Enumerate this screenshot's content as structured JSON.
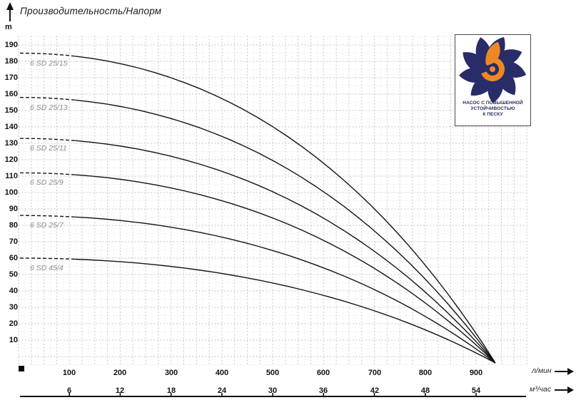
{
  "header": {
    "title": "Производительность/Напорм",
    "y_unit_label": "m"
  },
  "axes": {
    "y_ticks": [
      190,
      180,
      170,
      160,
      150,
      140,
      130,
      120,
      110,
      100,
      90,
      80,
      70,
      60,
      50,
      40,
      30,
      20,
      10
    ],
    "x_flow_lmin": {
      "unit": "л/мин",
      "ticks": [
        100,
        200,
        300,
        400,
        500,
        600,
        700,
        800,
        900
      ]
    },
    "x_flow_m3h": {
      "unit": "м³/час",
      "ticks": [
        6,
        12,
        18,
        24,
        30,
        36,
        42,
        48,
        54
      ]
    }
  },
  "chart_data": {
    "type": "line",
    "title": "Производительность/Напорм",
    "ylabel": "m",
    "ylim": [
      0,
      195
    ],
    "xlim_lmin": [
      0,
      1000
    ],
    "x_units": [
      "л/мин",
      "м³/час"
    ],
    "grid": "dashed, minor every 5 m / 12.5 л/мин, major every 10 m / 25 л/мин",
    "legend_position": "labels at curve start",
    "dashed_segment_max_lmin": 110,
    "max_flow_lmin": 935,
    "series": [
      {
        "name": "6 SD 25/15",
        "head_m": 185,
        "points_lmin_m": [
          [
            0,
            185
          ],
          [
            200,
            179
          ],
          [
            400,
            157
          ],
          [
            600,
            118
          ],
          [
            800,
            56
          ],
          [
            935,
            0
          ]
        ]
      },
      {
        "name": "6 SD 25/13",
        "head_m": 158,
        "points_lmin_m": [
          [
            0,
            158
          ],
          [
            200,
            153
          ],
          [
            400,
            134
          ],
          [
            600,
            101
          ],
          [
            800,
            47
          ],
          [
            935,
            0
          ]
        ]
      },
      {
        "name": "6 SD 25/11",
        "head_m": 133,
        "points_lmin_m": [
          [
            0,
            133
          ],
          [
            200,
            128
          ],
          [
            400,
            113
          ],
          [
            600,
            84
          ],
          [
            800,
            39
          ],
          [
            935,
            0
          ]
        ]
      },
      {
        "name": "6 SD 25/9",
        "head_m": 112,
        "points_lmin_m": [
          [
            0,
            112
          ],
          [
            200,
            108
          ],
          [
            400,
            95
          ],
          [
            600,
            71
          ],
          [
            800,
            33
          ],
          [
            935,
            0
          ]
        ]
      },
      {
        "name": "6 SD 25/7",
        "head_m": 86,
        "points_lmin_m": [
          [
            0,
            86
          ],
          [
            200,
            83
          ],
          [
            400,
            73
          ],
          [
            600,
            54
          ],
          [
            800,
            25
          ],
          [
            935,
            0
          ]
        ]
      },
      {
        "name": "6 SD 45/4",
        "head_m": 60,
        "points_lmin_m": [
          [
            0,
            60
          ],
          [
            200,
            58
          ],
          [
            400,
            51
          ],
          [
            600,
            37
          ],
          [
            800,
            16
          ],
          [
            935,
            0
          ]
        ]
      }
    ]
  },
  "logo": {
    "caption_lines": [
      "НАСОС С ПОВЫШЕННОЙ",
      "УСТОЙЧИВОСТЬЮ",
      "К ПЕСКУ"
    ],
    "petal_color": "#282c68",
    "swirl_color": "#ee8824"
  },
  "colors": {
    "curve": "#141414",
    "grid_major": "#c7c7c7",
    "grid_minor": "#e3e3e3",
    "axis": "#111111",
    "tick_label": "#101018",
    "curve_label": "#8c8c8c"
  }
}
